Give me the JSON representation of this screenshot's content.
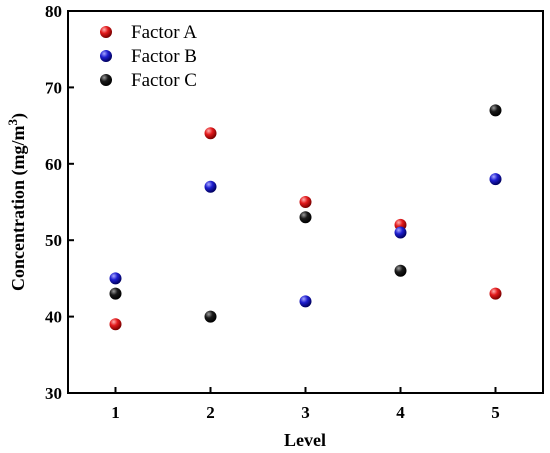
{
  "chart_data": {
    "type": "scatter",
    "x": [
      1,
      2,
      3,
      4,
      5
    ],
    "series": [
      {
        "name": "Factor A",
        "color": "#e31a1c",
        "values": [
          39,
          64,
          55,
          52,
          43
        ]
      },
      {
        "name": "Factor B",
        "color": "#1f1fd0",
        "values": [
          45,
          57,
          42,
          51,
          58
        ]
      },
      {
        "name": "Factor C",
        "color": "#111111",
        "values": [
          43,
          40,
          53,
          46,
          67
        ]
      }
    ],
    "xlabel": "Level",
    "ylabel_main": "Concentration (mg/m",
    "ylabel_sup": "3",
    "ylabel_close": ")",
    "xticks": [
      "1",
      "2",
      "3",
      "4",
      "5"
    ],
    "yticks": [
      "30",
      "40",
      "50",
      "60",
      "70",
      "80"
    ],
    "xlim": [
      0.5,
      5.5
    ],
    "ylim": [
      30,
      80
    ],
    "grid": false,
    "legend": "top-left"
  }
}
